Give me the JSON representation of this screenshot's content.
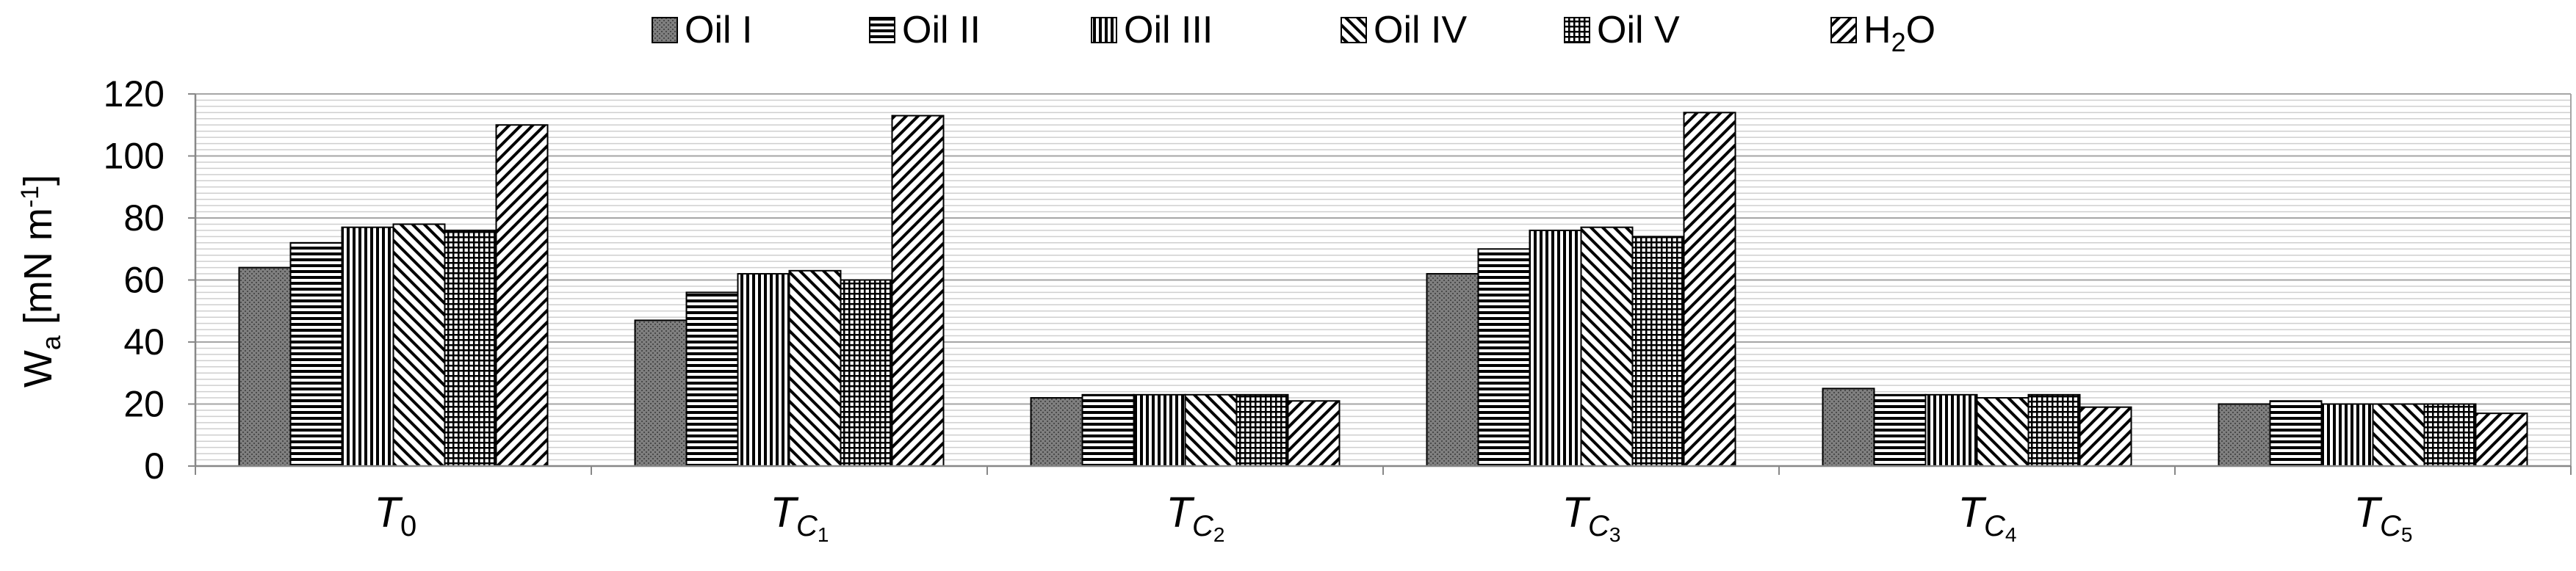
{
  "chart_data": {
    "type": "bar",
    "title": "",
    "xlabel": "",
    "ylabel": "Wa [mN m-1]",
    "ylabel_parts": {
      "main": "W",
      "sub": "a",
      "rest": " [mN m",
      "sup": "-1",
      "end": "]"
    },
    "ylim": [
      0,
      120
    ],
    "yticks": [
      "0",
      "20",
      "40",
      "60",
      "80",
      "100",
      "120"
    ],
    "grid": true,
    "legend_position": "top",
    "categories": [
      "T0",
      "TC1",
      "TC2",
      "TC3",
      "TC4",
      "TC5"
    ],
    "category_labels": [
      {
        "base": "T",
        "sub": "0",
        "subsub": ""
      },
      {
        "base": "T",
        "sub": "C",
        "subsub": "1"
      },
      {
        "base": "T",
        "sub": "C",
        "subsub": "2"
      },
      {
        "base": "T",
        "sub": "C",
        "subsub": "3"
      },
      {
        "base": "T",
        "sub": "C",
        "subsub": "4"
      },
      {
        "base": "T",
        "sub": "C",
        "subsub": "5"
      }
    ],
    "series": [
      {
        "name": "Oil I",
        "label": {
          "main": "Oil I",
          "sub": "",
          "end": ""
        },
        "pattern": "dots",
        "values": [
          64,
          47,
          22,
          62,
          25,
          20
        ]
      },
      {
        "name": "Oil II",
        "label": {
          "main": "Oil II",
          "sub": "",
          "end": ""
        },
        "pattern": "hlines",
        "values": [
          72,
          56,
          23,
          70,
          23,
          21
        ]
      },
      {
        "name": "Oil III",
        "label": {
          "main": "Oil III",
          "sub": "",
          "end": ""
        },
        "pattern": "vlines",
        "values": [
          77,
          62,
          23,
          76,
          23,
          20
        ]
      },
      {
        "name": "Oil IV",
        "label": {
          "main": "Oil IV",
          "sub": "",
          "end": ""
        },
        "pattern": "backslash",
        "values": [
          78,
          63,
          23,
          77,
          22,
          20
        ]
      },
      {
        "name": "Oil V",
        "label": {
          "main": "Oil V",
          "sub": "",
          "end": ""
        },
        "pattern": "grid",
        "values": [
          76,
          60,
          23,
          74,
          23,
          20
        ]
      },
      {
        "name": "H2O",
        "label": {
          "main": "H",
          "sub": "2",
          "end": "O"
        },
        "pattern": "slash",
        "values": [
          110,
          113,
          21,
          114,
          19,
          17
        ]
      }
    ]
  }
}
